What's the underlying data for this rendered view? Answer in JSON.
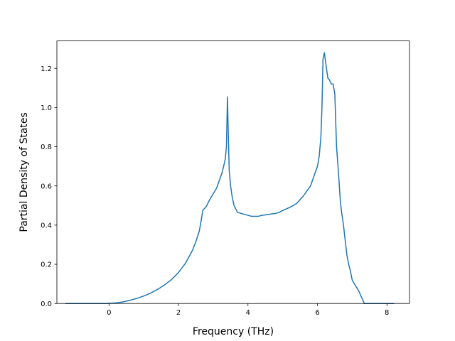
{
  "chart_data": {
    "type": "line",
    "title": "",
    "xlabel": "Frequency (THz)",
    "ylabel": "Partial Density of States",
    "xlim": [
      -1.5,
      8.65
    ],
    "ylim": [
      0.0,
      1.34
    ],
    "xticks": [
      0,
      2,
      4,
      6,
      8
    ],
    "yticks": [
      0.0,
      0.2,
      0.4,
      0.6,
      0.8,
      1.0,
      1.2
    ],
    "xtick_labels": [
      "0",
      "2",
      "4",
      "6",
      "8"
    ],
    "ytick_labels": [
      "0.0",
      "0.2",
      "0.4",
      "0.6",
      "0.8",
      "1.0",
      "1.2"
    ],
    "grid": false,
    "legend": "none",
    "series_color": "#1f77b4",
    "series": [
      {
        "x": [
          -1.25,
          -0.9,
          -0.5,
          -0.1,
          0.0,
          0.2,
          0.4,
          0.6,
          0.8,
          1.0,
          1.2,
          1.4,
          1.6,
          1.8,
          2.0,
          2.2,
          2.4,
          2.5,
          2.6,
          2.65,
          2.7,
          2.8,
          2.9,
          3.0,
          3.1,
          3.2,
          3.25,
          3.3,
          3.35,
          3.38,
          3.41,
          3.43,
          3.46,
          3.5,
          3.55,
          3.6,
          3.7,
          3.8,
          3.9,
          4.0,
          4.1,
          4.2,
          4.3,
          4.4,
          4.6,
          4.8,
          4.9,
          5.0,
          5.2,
          5.4,
          5.6,
          5.8,
          6.0,
          6.05,
          6.1,
          6.13,
          6.16,
          6.2,
          6.23,
          6.26,
          6.3,
          6.35,
          6.4,
          6.45,
          6.5,
          6.55,
          6.6,
          6.63,
          6.66,
          6.7,
          6.75,
          6.8,
          6.85,
          6.9,
          6.95,
          7.0,
          7.1,
          7.2,
          7.3,
          7.35,
          7.4,
          7.5,
          7.7,
          8.0,
          8.2
        ],
        "y": [
          0.0,
          0.0,
          0.0,
          0.0,
          0.001,
          0.003,
          0.008,
          0.016,
          0.026,
          0.038,
          0.053,
          0.072,
          0.095,
          0.122,
          0.158,
          0.205,
          0.27,
          0.315,
          0.37,
          0.42,
          0.475,
          0.495,
          0.53,
          0.56,
          0.59,
          0.64,
          0.665,
          0.7,
          0.74,
          0.8,
          1.055,
          0.9,
          0.68,
          0.6,
          0.54,
          0.5,
          0.465,
          0.46,
          0.455,
          0.45,
          0.445,
          0.445,
          0.445,
          0.45,
          0.455,
          0.46,
          0.465,
          0.475,
          0.49,
          0.51,
          0.55,
          0.6,
          0.7,
          0.75,
          0.85,
          1.0,
          1.245,
          1.28,
          1.24,
          1.2,
          1.15,
          1.14,
          1.12,
          1.12,
          1.07,
          0.8,
          0.68,
          0.6,
          0.52,
          0.46,
          0.4,
          0.32,
          0.245,
          0.2,
          0.165,
          0.12,
          0.09,
          0.06,
          0.02,
          0.0,
          0.0,
          0.0,
          0.0,
          0.0,
          0.0
        ]
      }
    ]
  }
}
